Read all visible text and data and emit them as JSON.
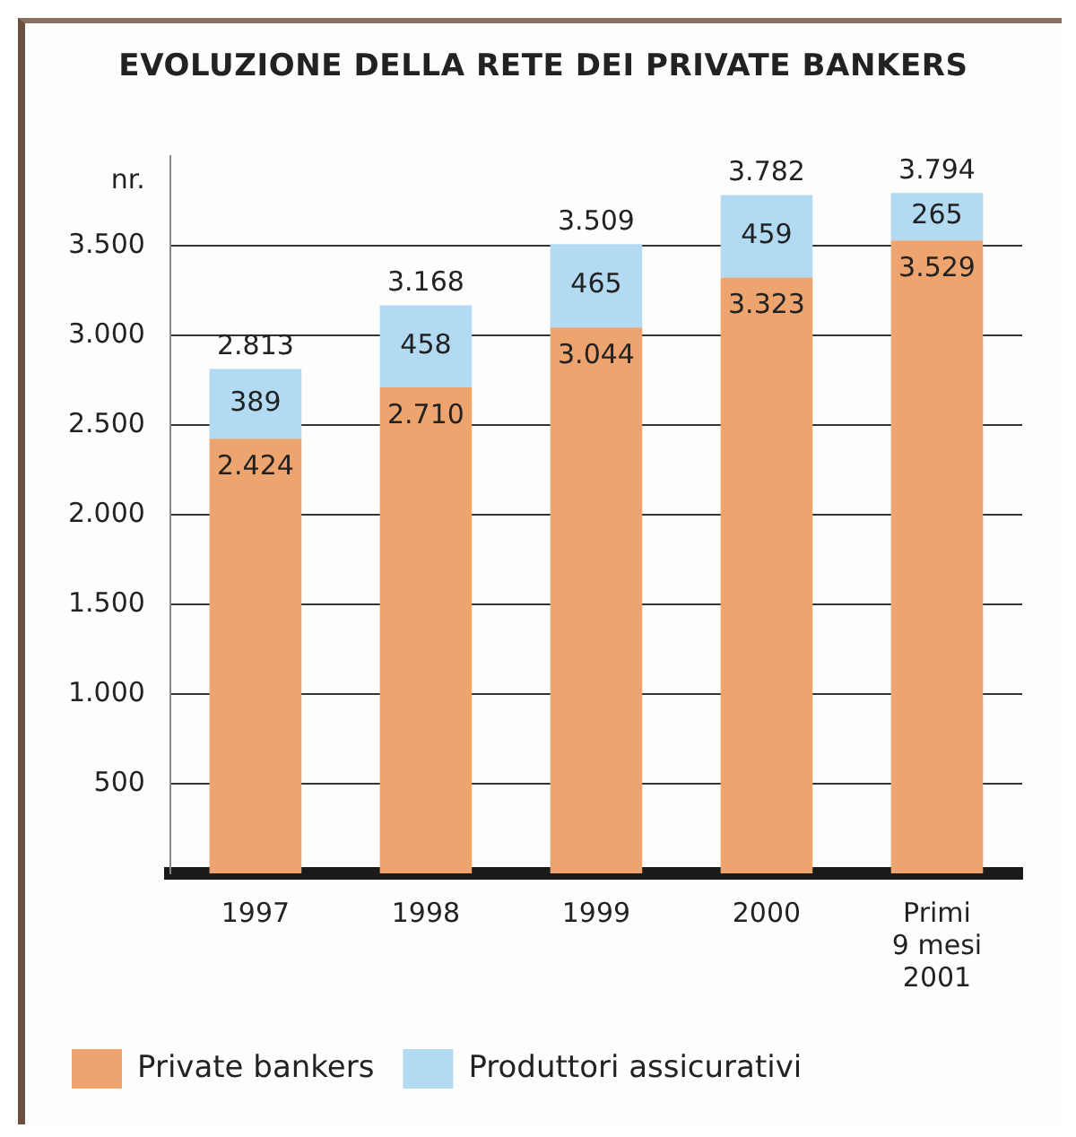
{
  "chart_data": {
    "type": "bar",
    "title": "EVOLUZIONE DELLA RETE DEI PRIVATE BANKERS",
    "ylabel": "nr.",
    "stacked": true,
    "categories": [
      "1997",
      "1998",
      "1999",
      "2000",
      "Primi\n9 mesi\n2001"
    ],
    "series": [
      {
        "name": "Private bankers",
        "color": "#eea46e",
        "values": [
          2424,
          2710,
          3044,
          3323,
          3529
        ],
        "value_labels": [
          "2.424",
          "2.710",
          "3.044",
          "3.323",
          "3.529"
        ]
      },
      {
        "name": "Produttori assicurativi",
        "color": "#b2daf3",
        "values": [
          389,
          458,
          465,
          459,
          265
        ],
        "value_labels": [
          "389",
          "458",
          "465",
          "459",
          "265"
        ]
      }
    ],
    "totals": [
      "2.813",
      "3.168",
      "3.509",
      "3.782",
      "3.794"
    ],
    "ylim": [
      0,
      4000
    ],
    "yticks": [
      {
        "value": 500,
        "label": "500"
      },
      {
        "value": 1000,
        "label": "1.000"
      },
      {
        "value": 1500,
        "label": "1.500"
      },
      {
        "value": 2000,
        "label": "2.000"
      },
      {
        "value": 2500,
        "label": "2.500"
      },
      {
        "value": 3000,
        "label": "3.000"
      },
      {
        "value": 3500,
        "label": "3.500"
      }
    ],
    "grid": "y",
    "legend": "bottom left"
  }
}
